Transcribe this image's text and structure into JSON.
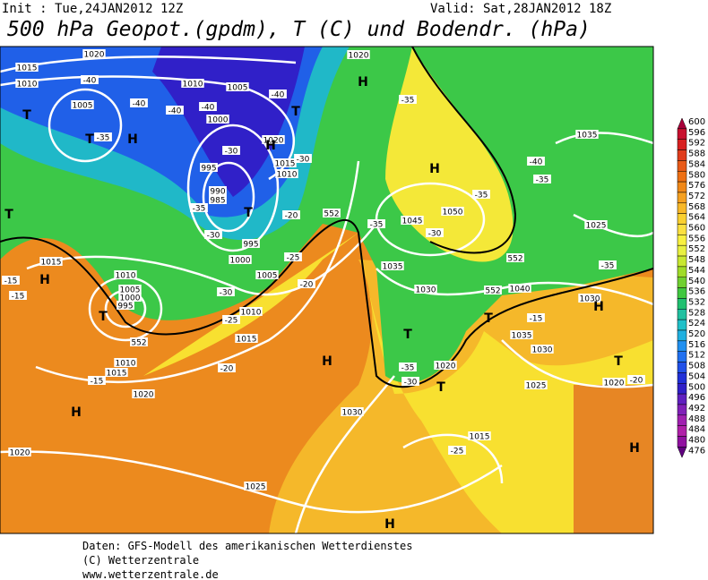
{
  "header": {
    "init": "Init : Tue,24JAN2012 12Z",
    "valid": "Valid: Sat,28JAN2012 18Z",
    "title": "500 hPa Geopot.(gpdm), T (C) und Bodendr. (hPa)"
  },
  "legend": {
    "labels": [
      "600",
      "596",
      "592",
      "588",
      "584",
      "580",
      "576",
      "572",
      "568",
      "564",
      "560",
      "556",
      "552",
      "548",
      "544",
      "540",
      "536",
      "532",
      "528",
      "524",
      "520",
      "516",
      "512",
      "508",
      "504",
      "500",
      "496",
      "492",
      "488",
      "484",
      "480",
      "476"
    ],
    "colors": [
      "#a8003a",
      "#c8102e",
      "#d82020",
      "#e03c1c",
      "#e85a18",
      "#ee7014",
      "#f08818",
      "#f5a020",
      "#f8b828",
      "#fad030",
      "#fbe040",
      "#f8f040",
      "#e8f040",
      "#c8e830",
      "#a0dc28",
      "#70d030",
      "#40c840",
      "#20c070",
      "#20c0a0",
      "#20c0c8",
      "#20b0e0",
      "#2090f0",
      "#2070f0",
      "#2050e8",
      "#2030d8",
      "#3020c8",
      "#6020c0",
      "#8020b8",
      "#a020b0",
      "#b020a8",
      "#9010a0",
      "#600080"
    ]
  },
  "map_labels": [
    "1020",
    "1015",
    "1010",
    "1005",
    "1010",
    "1005",
    "1000",
    "995",
    "990",
    "985",
    "995",
    "1000",
    "1005",
    "1010",
    "1015",
    "1020",
    "1015",
    "1010",
    "1020",
    "1015",
    "1010",
    "1005",
    "1000",
    "995",
    "1010",
    "1015",
    "1020",
    "1020",
    "1025",
    "1030",
    "1045",
    "1050",
    "1035",
    "1030",
    "1040",
    "1035",
    "1030",
    "1025",
    "1020",
    "1015",
    "1035",
    "1025",
    "1030",
    "1020",
    "-40",
    "-40",
    "-40",
    "-40",
    "-40",
    "-35",
    "-35",
    "-30",
    "-30",
    "-30",
    "-20",
    "-25",
    "-20",
    "-30",
    "-25",
    "-20",
    "-15",
    "-15",
    "-15",
    "-35",
    "-35",
    "-35",
    "-30",
    "-35",
    "-30",
    "-25",
    "-40",
    "-35",
    "-15",
    "-35",
    "-20",
    "552",
    "552",
    "552",
    "552",
    "T",
    "T",
    "H",
    "T",
    "T",
    "T",
    "H",
    "H",
    "H",
    "H",
    "H",
    "T",
    "T",
    "H",
    "T",
    "H",
    "H",
    "H",
    "T",
    "T"
  ],
  "footer": [
    "Daten: GFS-Modell des amerikanischen Wetterdienstes",
    "(C) Wetterzentrale",
    "www.wetterzentrale.de"
  ]
}
